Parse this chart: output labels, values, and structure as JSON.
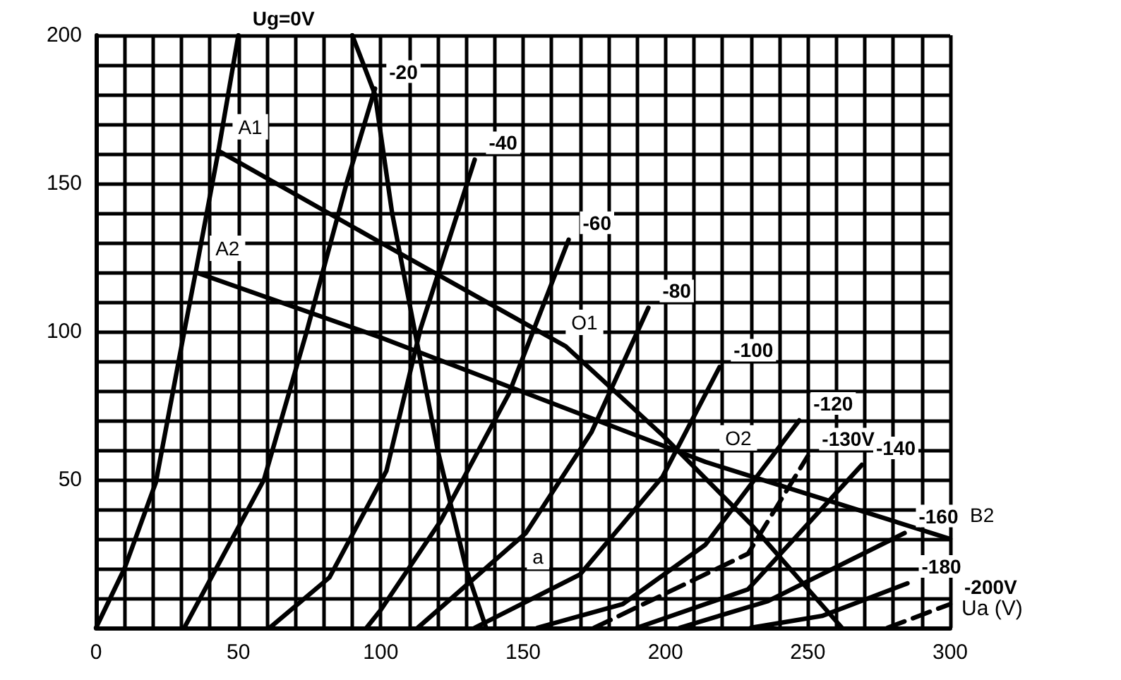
{
  "chart_data": {
    "type": "line",
    "xlabel": "Ua (V)",
    "grid": true,
    "legend": false,
    "marker": "none",
    "xlim": [
      0,
      300
    ],
    "ylim": [
      0,
      200
    ],
    "xticks": [
      0,
      {
        "value": 10,
        "label": null
      },
      {
        "value": 20,
        "label": null
      },
      {
        "value": 30,
        "label": null
      },
      {
        "value": 40,
        "label": null
      },
      50,
      {
        "value": 60,
        "label": null
      },
      {
        "value": 70,
        "label": null
      },
      {
        "value": 80,
        "label": null
      },
      {
        "value": 90,
        "label": null
      },
      100,
      {
        "value": 110,
        "label": null
      },
      {
        "value": 120,
        "label": null
      },
      {
        "value": 130,
        "label": null
      },
      {
        "value": 140,
        "label": null
      },
      150,
      {
        "value": 160,
        "label": null
      },
      {
        "value": 170,
        "label": null
      },
      {
        "value": 180,
        "label": null
      },
      {
        "value": 190,
        "label": null
      },
      200,
      {
        "value": 210,
        "label": null
      },
      {
        "value": 220,
        "label": null
      },
      {
        "value": 230,
        "label": null
      },
      {
        "value": 240,
        "label": null
      },
      250,
      {
        "value": 260,
        "label": null
      },
      {
        "value": 270,
        "label": null
      },
      {
        "value": 280,
        "label": null
      },
      {
        "value": 290,
        "label": null
      },
      300
    ],
    "yticks": [
      {
        "value": 0,
        "label": null
      },
      {
        "value": 10,
        "label": null
      },
      {
        "value": 20,
        "label": null
      },
      {
        "value": 30,
        "label": null
      },
      {
        "value": 40,
        "label": null
      },
      50,
      {
        "value": 60,
        "label": null
      },
      {
        "value": 70,
        "label": null
      },
      {
        "value": 80,
        "label": null
      },
      {
        "value": 90,
        "label": null
      },
      100,
      {
        "value": 110,
        "label": null
      },
      {
        "value": 120,
        "label": null
      },
      {
        "value": 130,
        "label": null
      },
      {
        "value": 140,
        "label": null
      },
      150,
      {
        "value": 160,
        "label": null
      },
      {
        "value": 170,
        "label": null
      },
      {
        "value": 180,
        "label": null
      },
      {
        "value": 190,
        "label": null
      },
      200
    ],
    "series": [
      {
        "name": "Ug=0V",
        "color": "#000000",
        "x": [
          0,
          10,
          21,
          31,
          35,
          43,
          50
        ],
        "values": [
          0,
          20,
          49,
          100,
          120,
          161,
          200
        ]
      },
      {
        "name": "-20",
        "color": "#000000",
        "x": [
          31,
          59,
          74,
          88,
          98
        ],
        "values": [
          0,
          50,
          100,
          150,
          182
        ]
      },
      {
        "name": "-40",
        "color": "#000000",
        "x": [
          61,
          82,
          102,
          114,
          133
        ],
        "values": [
          0,
          17,
          53,
          101,
          158
        ]
      },
      {
        "name": "-60",
        "color": "#000000",
        "x": [
          95,
          100,
          121,
          145,
          166
        ],
        "values": [
          0,
          6,
          36,
          79,
          131
        ]
      },
      {
        "name": "-80",
        "color": "#000000",
        "x": [
          113,
          151,
          174,
          194
        ],
        "values": [
          0,
          32,
          66,
          108
        ]
      },
      {
        "name": "-100",
        "color": "#000000",
        "x": [
          133,
          170,
          199,
          219
        ],
        "values": [
          0,
          18,
          51,
          88
        ]
      },
      {
        "name": "-120",
        "color": "#000000",
        "x": [
          155,
          185,
          214,
          247
        ],
        "values": [
          0,
          8,
          28,
          70
        ]
      },
      {
        "name": "-130V",
        "color": "#000000",
        "line_style": "dashed",
        "x": [
          175,
          229,
          250
        ],
        "values": [
          0,
          25,
          58
        ]
      },
      {
        "name": "-140",
        "color": "#000000",
        "x": [
          190,
          229,
          269
        ],
        "values": [
          0,
          13,
          55
        ]
      },
      {
        "name": "-160",
        "color": "#000000",
        "x": [
          205,
          236,
          284
        ],
        "values": [
          0,
          9,
          32
        ]
      },
      {
        "name": "-180",
        "color": "#000000",
        "x": [
          230,
          255,
          285
        ],
        "values": [
          0,
          4,
          15
        ]
      },
      {
        "name": "-200V",
        "color": "#000000",
        "line_style": "dashed",
        "x": [
          278,
          300
        ],
        "values": [
          0,
          8
        ]
      },
      {
        "color": "#000000",
        "x": [
          90,
          98,
          104,
          112,
          120,
          130,
          137
        ],
        "values": [
          200,
          180,
          140,
          100,
          60,
          20,
          0
        ]
      },
      {
        "color": "#000000",
        "x": [
          43,
          100,
          165,
          199,
          230,
          262
        ],
        "values": [
          161,
          130,
          95,
          65,
          35,
          0
        ]
      },
      {
        "color": "#000000",
        "x": [
          35,
          100,
          214,
          300
        ],
        "values": [
          120,
          98,
          56,
          30
        ]
      }
    ],
    "annotations": [
      {
        "text": "A1",
        "x": 43,
        "y": 161
      },
      {
        "text": "A2",
        "x": 35,
        "y": 120
      },
      {
        "text": "O1",
        "x": 160,
        "y": 95
      },
      {
        "text": "O2",
        "x": 214,
        "y": 56
      },
      "a",
      {
        "text": "B2",
        "x": 300,
        "y": 30
      }
    ]
  }
}
